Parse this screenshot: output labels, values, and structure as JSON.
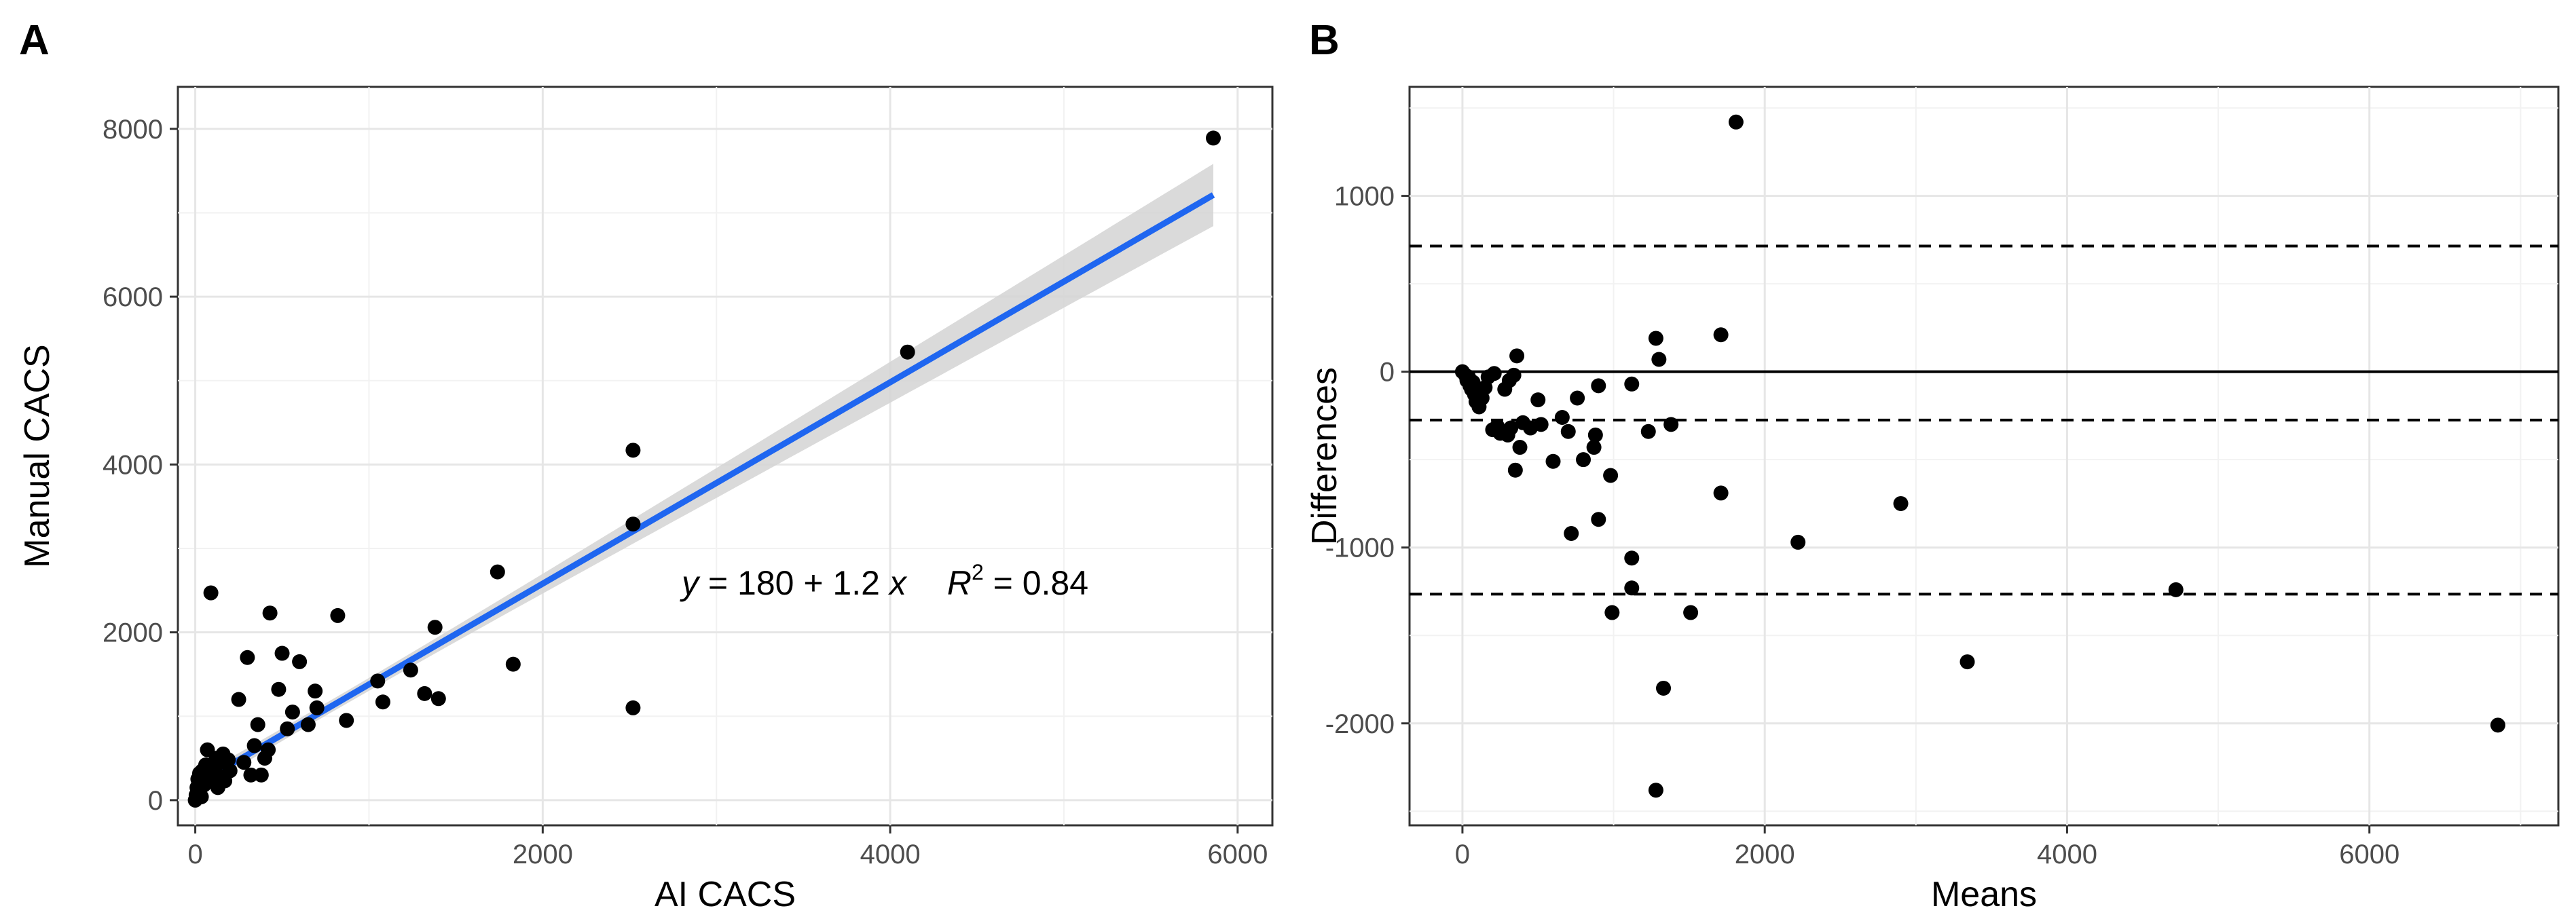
{
  "chart_data": [
    {
      "panel": "A",
      "type": "scatter",
      "xlabel": "AI CACS",
      "ylabel": "Manual CACS",
      "xlim": [
        -100,
        6200
      ],
      "ylim": [
        -300,
        8500
      ],
      "xticks": [
        0,
        2000,
        4000,
        6000
      ],
      "yticks": [
        0,
        2000,
        4000,
        6000,
        8000
      ],
      "grid": true,
      "annotation": {
        "y_var": "y",
        "eq_body": " = 180 + 1.2 ",
        "x_var": "x",
        "r_sym": "R",
        "r_exp": "2",
        "r_val": " = 0.84",
        "x": 2800,
        "y": 2450
      },
      "fit": {
        "intercept": 180,
        "slope": 1.2,
        "color": "#1f66f0",
        "band_color": "#d3d3d3"
      },
      "points": [
        [
          0,
          0
        ],
        [
          5,
          60
        ],
        [
          10,
          150
        ],
        [
          15,
          250
        ],
        [
          20,
          90
        ],
        [
          25,
          320
        ],
        [
          30,
          200
        ],
        [
          35,
          40
        ],
        [
          40,
          350
        ],
        [
          50,
          180
        ],
        [
          60,
          420
        ],
        [
          70,
          600
        ],
        [
          80,
          300
        ],
        [
          90,
          2470
        ],
        [
          100,
          380
        ],
        [
          110,
          250
        ],
        [
          120,
          500
        ],
        [
          130,
          150
        ],
        [
          140,
          450
        ],
        [
          150,
          280
        ],
        [
          160,
          550
        ],
        [
          170,
          230
        ],
        [
          190,
          480
        ],
        [
          200,
          350
        ],
        [
          250,
          1200
        ],
        [
          280,
          450
        ],
        [
          300,
          1700
        ],
        [
          320,
          300
        ],
        [
          340,
          650
        ],
        [
          360,
          900
        ],
        [
          380,
          300
        ],
        [
          400,
          500
        ],
        [
          420,
          600
        ],
        [
          430,
          2230
        ],
        [
          480,
          1320
        ],
        [
          500,
          1750
        ],
        [
          530,
          850
        ],
        [
          560,
          1050
        ],
        [
          600,
          1650
        ],
        [
          650,
          900
        ],
        [
          690,
          1300
        ],
        [
          700,
          1100
        ],
        [
          820,
          2200
        ],
        [
          870,
          950
        ],
        [
          1050,
          1420
        ],
        [
          1080,
          1170
        ],
        [
          1240,
          1550
        ],
        [
          1320,
          1270
        ],
        [
          1380,
          2060
        ],
        [
          1400,
          1210
        ],
        [
          1740,
          2720
        ],
        [
          1830,
          1620
        ],
        [
          2520,
          4170
        ],
        [
          2520,
          3290
        ],
        [
          2520,
          1100
        ],
        [
          4100,
          5340
        ],
        [
          5860,
          7890
        ]
      ]
    },
    {
      "panel": "B",
      "type": "scatter",
      "xlabel": "Means",
      "ylabel": "Differences",
      "xlim": [
        -350,
        7250
      ],
      "ylim": [
        -2580,
        1620
      ],
      "xticks": [
        0,
        2000,
        4000,
        6000
      ],
      "yticks": [
        -2000,
        -1000,
        0,
        1000
      ],
      "grid": true,
      "reference_lines": [
        {
          "y": 0,
          "style": "solid"
        },
        {
          "y": 715,
          "style": "dashed"
        },
        {
          "y": -275,
          "style": "dashed"
        },
        {
          "y": -1265,
          "style": "dashed"
        }
      ],
      "points": [
        [
          0,
          0
        ],
        [
          20,
          -20
        ],
        [
          30,
          -50
        ],
        [
          40,
          -30
        ],
        [
          50,
          -80
        ],
        [
          60,
          -100
        ],
        [
          70,
          -60
        ],
        [
          80,
          -130
        ],
        [
          90,
          -170
        ],
        [
          100,
          -120
        ],
        [
          110,
          -200
        ],
        [
          130,
          -150
        ],
        [
          150,
          -90
        ],
        [
          170,
          -30
        ],
        [
          200,
          -330
        ],
        [
          210,
          -10
        ],
        [
          230,
          -310
        ],
        [
          250,
          -350
        ],
        [
          280,
          -100
        ],
        [
          300,
          -360
        ],
        [
          310,
          -50
        ],
        [
          320,
          -320
        ],
        [
          340,
          -20
        ],
        [
          350,
          -560
        ],
        [
          360,
          90
        ],
        [
          380,
          -430
        ],
        [
          400,
          -290
        ],
        [
          450,
          -320
        ],
        [
          500,
          -160
        ],
        [
          520,
          -300
        ],
        [
          600,
          -510
        ],
        [
          660,
          -260
        ],
        [
          700,
          -340
        ],
        [
          720,
          -920
        ],
        [
          760,
          -150
        ],
        [
          800,
          -500
        ],
        [
          870,
          -430
        ],
        [
          880,
          -360
        ],
        [
          900,
          -840
        ],
        [
          900,
          -80
        ],
        [
          980,
          -590
        ],
        [
          990,
          -1370
        ],
        [
          1120,
          -1060
        ],
        [
          1120,
          -70
        ],
        [
          1120,
          -1230
        ],
        [
          1230,
          -340
        ],
        [
          1280,
          190
        ],
        [
          1280,
          -2380
        ],
        [
          1300,
          70
        ],
        [
          1330,
          -1800
        ],
        [
          1380,
          -300
        ],
        [
          1510,
          -1370
        ],
        [
          1710,
          -690
        ],
        [
          1710,
          210
        ],
        [
          1810,
          1420
        ],
        [
          2220,
          -970
        ],
        [
          2900,
          -750
        ],
        [
          3340,
          -1650
        ],
        [
          4720,
          -1240
        ],
        [
          6850,
          -2010
        ]
      ]
    }
  ]
}
